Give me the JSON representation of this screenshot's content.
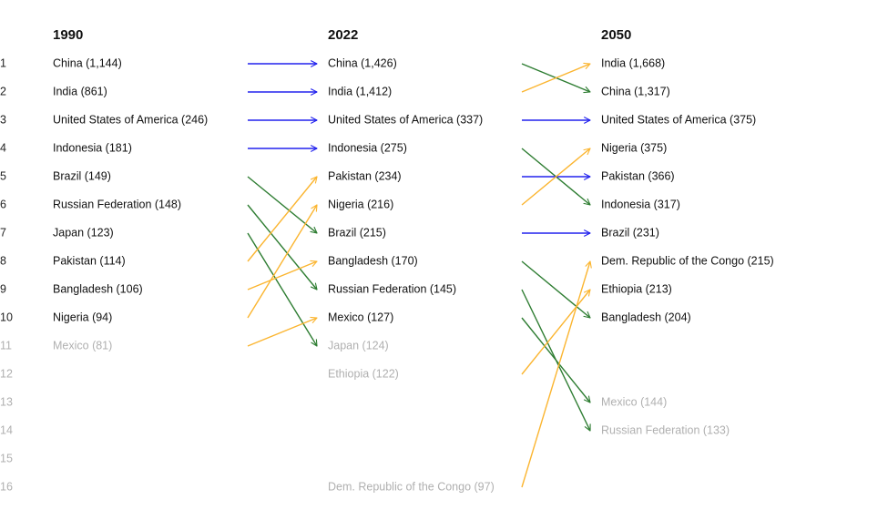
{
  "chart_data": {
    "type": "bump",
    "years": [
      "1990",
      "2022",
      "2050"
    ],
    "ranks": [
      "1",
      "2",
      "3",
      "4",
      "5",
      "6",
      "7",
      "8",
      "9",
      "10",
      "11",
      "12",
      "13",
      "14",
      "15",
      "16"
    ],
    "top_n": 10,
    "columns": [
      {
        "year": "1990",
        "entries": [
          {
            "rank": 1,
            "country": "China",
            "value": "1,144"
          },
          {
            "rank": 2,
            "country": "India",
            "value": "861"
          },
          {
            "rank": 3,
            "country": "United States of America",
            "value": "246"
          },
          {
            "rank": 4,
            "country": "Indonesia",
            "value": "181"
          },
          {
            "rank": 5,
            "country": "Brazil",
            "value": "149"
          },
          {
            "rank": 6,
            "country": "Russian Federation",
            "value": "148"
          },
          {
            "rank": 7,
            "country": "Japan",
            "value": "123"
          },
          {
            "rank": 8,
            "country": "Pakistan",
            "value": "114"
          },
          {
            "rank": 9,
            "country": "Bangladesh",
            "value": "106"
          },
          {
            "rank": 10,
            "country": "Nigeria",
            "value": "94"
          },
          {
            "rank": 11,
            "country": "Mexico",
            "value": "81"
          }
        ]
      },
      {
        "year": "2022",
        "entries": [
          {
            "rank": 1,
            "country": "China",
            "value": "1,426"
          },
          {
            "rank": 2,
            "country": "India",
            "value": "1,412"
          },
          {
            "rank": 3,
            "country": "United States of America",
            "value": "337"
          },
          {
            "rank": 4,
            "country": "Indonesia",
            "value": "275"
          },
          {
            "rank": 5,
            "country": "Pakistan",
            "value": "234"
          },
          {
            "rank": 6,
            "country": "Nigeria",
            "value": "216"
          },
          {
            "rank": 7,
            "country": "Brazil",
            "value": "215"
          },
          {
            "rank": 8,
            "country": "Bangladesh",
            "value": "170"
          },
          {
            "rank": 9,
            "country": "Russian Federation",
            "value": "145"
          },
          {
            "rank": 10,
            "country": "Mexico",
            "value": "127"
          },
          {
            "rank": 11,
            "country": "Japan",
            "value": "124"
          },
          {
            "rank": 12,
            "country": "Ethiopia",
            "value": "122"
          },
          {
            "rank": 16,
            "country": "Dem. Republic of the Congo",
            "value": "97"
          }
        ]
      },
      {
        "year": "2050",
        "entries": [
          {
            "rank": 1,
            "country": "India",
            "value": "1,668"
          },
          {
            "rank": 2,
            "country": "China",
            "value": "1,317"
          },
          {
            "rank": 3,
            "country": "United States of America",
            "value": "375"
          },
          {
            "rank": 4,
            "country": "Nigeria",
            "value": "375"
          },
          {
            "rank": 5,
            "country": "Pakistan",
            "value": "366"
          },
          {
            "rank": 6,
            "country": "Indonesia",
            "value": "317"
          },
          {
            "rank": 7,
            "country": "Brazil",
            "value": "231"
          },
          {
            "rank": 8,
            "country": "Dem. Republic of the Congo",
            "value": "215"
          },
          {
            "rank": 9,
            "country": "Ethiopia",
            "value": "213"
          },
          {
            "rank": 10,
            "country": "Bangladesh",
            "value": "204"
          },
          {
            "rank": 13,
            "country": "Mexico",
            "value": "144"
          },
          {
            "rank": 14,
            "country": "Russian Federation",
            "value": "133"
          }
        ]
      }
    ],
    "transitions": [
      [
        {
          "from": 1,
          "to": 1,
          "change": "same"
        },
        {
          "from": 2,
          "to": 2,
          "change": "same"
        },
        {
          "from": 3,
          "to": 3,
          "change": "same"
        },
        {
          "from": 4,
          "to": 4,
          "change": "same"
        },
        {
          "from": 5,
          "to": 7,
          "change": "down"
        },
        {
          "from": 6,
          "to": 9,
          "change": "down"
        },
        {
          "from": 7,
          "to": 11,
          "change": "down"
        },
        {
          "from": 8,
          "to": 5,
          "change": "up"
        },
        {
          "from": 9,
          "to": 8,
          "change": "up"
        },
        {
          "from": 10,
          "to": 6,
          "change": "up"
        },
        {
          "from": 11,
          "to": 10,
          "change": "up"
        }
      ],
      [
        {
          "from": 1,
          "to": 2,
          "change": "down"
        },
        {
          "from": 2,
          "to": 1,
          "change": "up"
        },
        {
          "from": 3,
          "to": 3,
          "change": "same"
        },
        {
          "from": 4,
          "to": 6,
          "change": "down"
        },
        {
          "from": 5,
          "to": 5,
          "change": "same"
        },
        {
          "from": 6,
          "to": 4,
          "change": "up"
        },
        {
          "from": 7,
          "to": 7,
          "change": "same"
        },
        {
          "from": 8,
          "to": 10,
          "change": "down"
        },
        {
          "from": 9,
          "to": 14,
          "change": "down"
        },
        {
          "from": 10,
          "to": 13,
          "change": "down"
        },
        {
          "from": 12,
          "to": 9,
          "change": "up"
        },
        {
          "from": 16,
          "to": 8,
          "change": "up"
        }
      ]
    ],
    "colors": {
      "same": "#2222ee",
      "up": "#fbb530",
      "down": "#2e7d32",
      "text": "#111111",
      "muted": "#b0b0b0"
    }
  }
}
